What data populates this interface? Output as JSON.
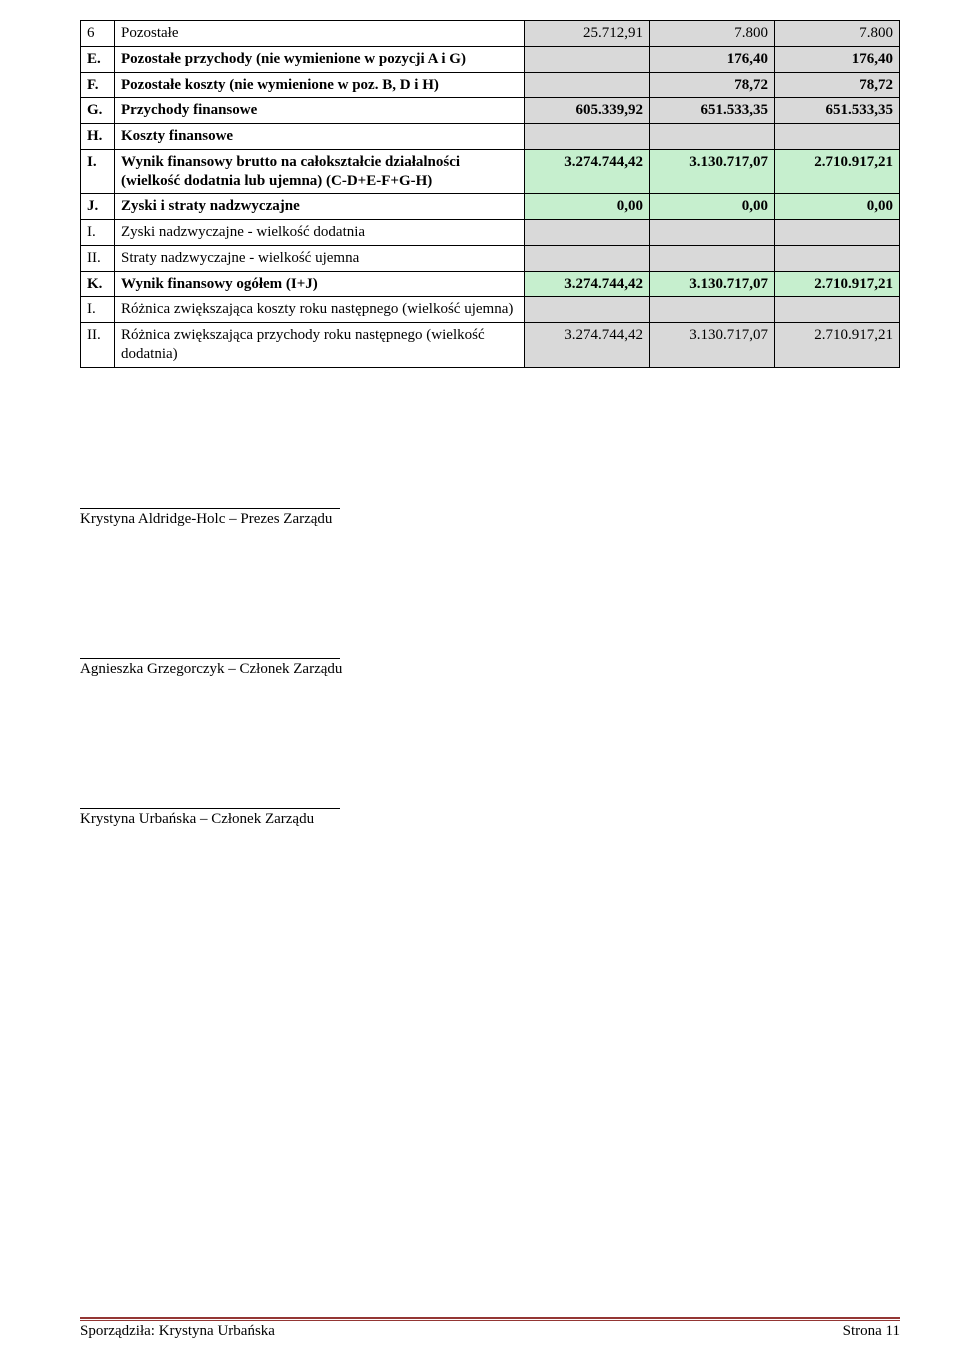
{
  "rows": [
    {
      "n": "6",
      "desc": "Pozostałe",
      "v1": "25.712,91",
      "v2": "7.800",
      "v3": "7.800",
      "bold": false,
      "gray6": true
    },
    {
      "n": "E.",
      "desc": "Pozostałe przychody (nie wymienione w pozycji A i G)",
      "v1": "",
      "v2": "176,40",
      "v3": "176,40",
      "bold": true,
      "grayAll": true
    },
    {
      "n": "F.",
      "desc": "Pozostałe koszty (nie wymienione w poz. B, D i H)",
      "v1": "",
      "v2": "78,72",
      "v3": "78,72",
      "bold": true,
      "grayAll": true
    },
    {
      "n": "G.",
      "desc": "Przychody finansowe",
      "v1": "605.339,92",
      "v2": "651.533,35",
      "v3": "651.533,35",
      "bold": true,
      "grayAll": true
    },
    {
      "n": "H.",
      "desc": "Koszty finansowe",
      "v1": "",
      "v2": "",
      "v3": "",
      "bold": true,
      "grayAll": true
    },
    {
      "n": "I.",
      "desc": "Wynik finansowy brutto na całokształcie działalności (wielkość dodatnia lub ujemna) (C-D+E-F+G-H)",
      "v1": "3.274.744,42",
      "v2": "3.130.717,07",
      "v3": "2.710.917,21",
      "bold": true,
      "greenAll": true
    },
    {
      "n": "J.",
      "desc": "Zyski i straty nadzwyczajne",
      "v1": "0,00",
      "v2": "0,00",
      "v3": "0,00",
      "bold": true,
      "greenAll": true
    },
    {
      "n": "I.",
      "desc": "Zyski nadzwyczajne - wielkość dodatnia",
      "v1": "",
      "v2": "",
      "v3": "",
      "bold": false,
      "gray6": true
    },
    {
      "n": "II.",
      "desc": "Straty nadzwyczajne - wielkość ujemna",
      "v1": "",
      "v2": "",
      "v3": "",
      "bold": false,
      "gray6": true
    },
    {
      "n": "K.",
      "desc": "Wynik finansowy ogółem (I+J)",
      "v1": "3.274.744,42",
      "v2": "3.130.717,07",
      "v3": "2.710.917,21",
      "bold": true,
      "greenAll": true
    },
    {
      "n": "I.",
      "desc": "Różnica zwiększająca koszty roku następnego (wielkość ujemna)",
      "v1": "",
      "v2": "",
      "v3": "",
      "bold": false,
      "gray6": true
    },
    {
      "n": "II.",
      "desc": "Różnica zwiększająca przychody roku następnego (wielkość dodatnia)",
      "v1": "3.274.744,42",
      "v2": "3.130.717,07",
      "v3": "2.710.917,21",
      "bold": false,
      "gray6": true
    }
  ],
  "signatures": [
    "Krystyna Aldridge-Holc – Prezes Zarządu",
    "Agnieszka Grzegorczyk – Członek Zarządu",
    "Krystyna Urbańska – Członek Zarządu"
  ],
  "footer": {
    "left": "Sporządziła: Krystyna Urbańska",
    "right": "Strona 11"
  },
  "colors": {
    "gray": "#d9d9d9",
    "green": "#c6efce",
    "footer_rule": "#943634"
  }
}
